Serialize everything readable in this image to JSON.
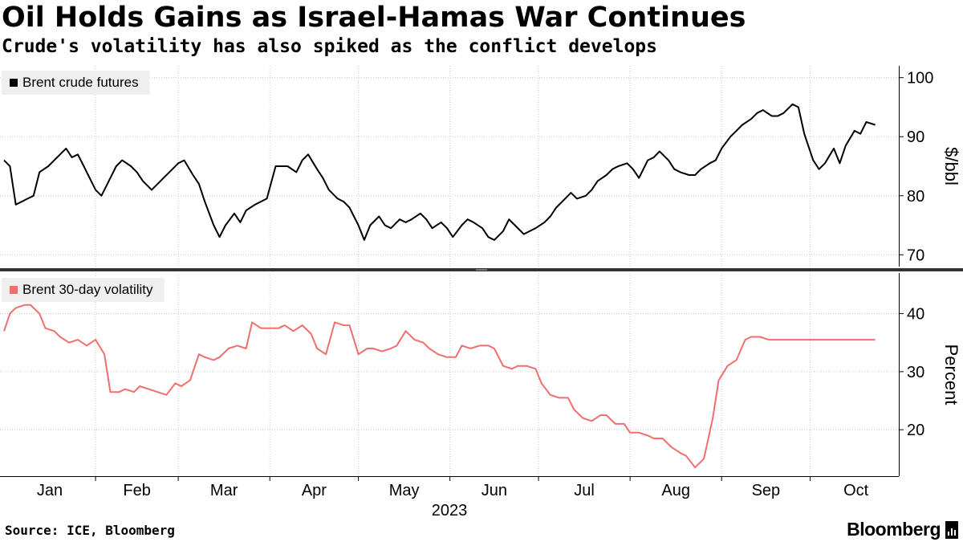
{
  "header": {
    "title": "Oil Holds Gains as Israel-Hamas War Continues",
    "subtitle": "Crude's volatility has also spiked as the conflict develops"
  },
  "footer": {
    "source": "Source: ICE, Bloomberg",
    "brand": "Bloomberg"
  },
  "colors": {
    "brent": "#000000",
    "volatility": "#f06e6e",
    "grid": "#c8c8c8",
    "divider": "#333333",
    "legend_bg": "#efefef"
  },
  "chart_data": [
    {
      "type": "line",
      "legend_position": "top-left",
      "grid": true,
      "ylabel": "$/bbl",
      "ylim": [
        68,
        102
      ],
      "yticks": [
        70,
        80,
        90,
        100
      ],
      "series": [
        {
          "name": "Brent crude futures",
          "x": [
            "2023-01-01",
            "2023-01-03",
            "2023-01-05",
            "2023-01-07",
            "2023-01-09",
            "2023-01-11",
            "2023-01-13",
            "2023-01-16",
            "2023-01-18",
            "2023-01-20",
            "2023-01-22",
            "2023-01-24",
            "2023-01-26",
            "2023-01-28",
            "2023-01-30",
            "2023-02-01",
            "2023-02-03",
            "2023-02-06",
            "2023-02-08",
            "2023-02-10",
            "2023-02-13",
            "2023-02-15",
            "2023-02-17",
            "2023-02-20",
            "2023-02-22",
            "2023-02-24",
            "2023-02-27",
            "2023-03-01",
            "2023-03-03",
            "2023-03-06",
            "2023-03-08",
            "2023-03-10",
            "2023-03-13",
            "2023-03-15",
            "2023-03-17",
            "2023-03-20",
            "2023-03-22",
            "2023-03-24",
            "2023-03-27",
            "2023-03-29",
            "2023-03-31",
            "2023-04-03",
            "2023-04-05",
            "2023-04-07",
            "2023-04-10",
            "2023-04-12",
            "2023-04-14",
            "2023-04-17",
            "2023-04-19",
            "2023-04-21",
            "2023-04-24",
            "2023-04-26",
            "2023-04-28",
            "2023-05-01",
            "2023-05-03",
            "2023-05-05",
            "2023-05-08",
            "2023-05-10",
            "2023-05-12",
            "2023-05-15",
            "2023-05-17",
            "2023-05-19",
            "2023-05-22",
            "2023-05-24",
            "2023-05-26",
            "2023-05-29",
            "2023-05-31",
            "2023-06-02",
            "2023-06-05",
            "2023-06-07",
            "2023-06-09",
            "2023-06-12",
            "2023-06-14",
            "2023-06-16",
            "2023-06-19",
            "2023-06-21",
            "2023-06-23",
            "2023-06-26",
            "2023-06-28",
            "2023-06-30",
            "2023-07-03",
            "2023-07-05",
            "2023-07-07",
            "2023-07-10",
            "2023-07-12",
            "2023-07-14",
            "2023-07-17",
            "2023-07-19",
            "2023-07-21",
            "2023-07-24",
            "2023-07-26",
            "2023-07-28",
            "2023-07-31",
            "2023-08-02",
            "2023-08-04",
            "2023-08-07",
            "2023-08-09",
            "2023-08-11",
            "2023-08-14",
            "2023-08-16",
            "2023-08-18",
            "2023-08-21",
            "2023-08-23",
            "2023-08-25",
            "2023-08-28",
            "2023-08-30",
            "2023-09-01",
            "2023-09-04",
            "2023-09-06",
            "2023-09-08",
            "2023-09-11",
            "2023-09-13",
            "2023-09-15",
            "2023-09-18",
            "2023-09-20",
            "2023-09-22",
            "2023-09-25",
            "2023-09-27",
            "2023-09-29",
            "2023-10-02",
            "2023-10-04",
            "2023-10-06",
            "2023-10-09",
            "2023-10-11",
            "2023-10-13",
            "2023-10-16",
            "2023-10-18",
            "2023-10-20",
            "2023-10-23"
          ],
          "values": [
            86,
            85,
            78.5,
            79,
            79.5,
            80,
            84,
            85,
            86,
            87,
            88,
            86.5,
            87,
            85,
            83,
            81,
            80,
            83,
            85,
            86,
            85,
            84,
            82.5,
            81,
            82,
            83,
            84.5,
            85.5,
            86,
            83.5,
            82,
            79,
            75,
            73,
            75,
            77,
            75.5,
            77.5,
            78.5,
            79,
            79.5,
            85,
            85,
            85,
            84,
            86,
            87,
            84.5,
            83,
            81,
            79.5,
            79,
            78,
            75,
            72.5,
            75,
            76.5,
            75,
            74.5,
            76,
            75.5,
            76,
            77,
            76,
            74.5,
            75.5,
            74.5,
            73,
            75,
            76,
            75.5,
            74.5,
            73,
            72.5,
            74,
            76,
            75,
            73.5,
            74,
            74.5,
            75.5,
            76.5,
            78,
            79.5,
            80.5,
            79.5,
            80,
            81,
            82.5,
            83.5,
            84.5,
            85,
            85.5,
            84.5,
            83,
            86,
            86.5,
            87.5,
            86,
            84.5,
            84,
            83.5,
            83.5,
            84.5,
            85.5,
            86,
            88,
            90,
            91,
            92,
            93,
            94,
            94.5,
            93.5,
            93.5,
            94,
            95.5,
            95,
            90.5,
            86,
            84.5,
            85.5,
            88,
            85.5,
            88.5,
            91,
            90.5,
            92.5,
            92
          ]
        }
      ]
    },
    {
      "type": "line",
      "legend_position": "top-left",
      "grid": true,
      "ylabel": "Percent",
      "ylim": [
        12,
        47
      ],
      "yticks": [
        20,
        30,
        40
      ],
      "xtick_labels": [
        "Jan",
        "Feb",
        "Mar",
        "Apr",
        "May",
        "Jun",
        "Jul",
        "Aug",
        "Sep",
        "Oct"
      ],
      "xlabel": "2023",
      "series": [
        {
          "name": "Brent 30-day volatility",
          "x": [
            "2023-01-01",
            "2023-01-03",
            "2023-01-05",
            "2023-01-08",
            "2023-01-10",
            "2023-01-13",
            "2023-01-15",
            "2023-01-18",
            "2023-01-20",
            "2023-01-23",
            "2023-01-26",
            "2023-01-29",
            "2023-02-01",
            "2023-02-04",
            "2023-02-06",
            "2023-02-09",
            "2023-02-11",
            "2023-02-14",
            "2023-02-16",
            "2023-02-19",
            "2023-02-22",
            "2023-02-25",
            "2023-02-28",
            "2023-03-02",
            "2023-03-05",
            "2023-03-08",
            "2023-03-10",
            "2023-03-13",
            "2023-03-15",
            "2023-03-18",
            "2023-03-21",
            "2023-03-24",
            "2023-03-26",
            "2023-03-29",
            "2023-04-01",
            "2023-04-04",
            "2023-04-06",
            "2023-04-09",
            "2023-04-12",
            "2023-04-15",
            "2023-04-17",
            "2023-04-20",
            "2023-04-23",
            "2023-04-26",
            "2023-04-28",
            "2023-05-01",
            "2023-05-04",
            "2023-05-06",
            "2023-05-09",
            "2023-05-12",
            "2023-05-14",
            "2023-05-17",
            "2023-05-20",
            "2023-05-23",
            "2023-05-25",
            "2023-05-28",
            "2023-05-31",
            "2023-06-03",
            "2023-06-05",
            "2023-06-08",
            "2023-06-11",
            "2023-06-14",
            "2023-06-16",
            "2023-06-19",
            "2023-06-22",
            "2023-06-24",
            "2023-06-27",
            "2023-06-30",
            "2023-07-02",
            "2023-07-05",
            "2023-07-08",
            "2023-07-11",
            "2023-07-13",
            "2023-07-16",
            "2023-07-19",
            "2023-07-22",
            "2023-07-24",
            "2023-07-27",
            "2023-07-30",
            "2023-08-01",
            "2023-08-04",
            "2023-08-07",
            "2023-08-09",
            "2023-08-12",
            "2023-08-15",
            "2023-08-18",
            "2023-08-20",
            "2023-08-23",
            "2023-08-26",
            "2023-08-29",
            "2023-08-31",
            "2023-09-03",
            "2023-09-06",
            "2023-09-09",
            "2023-09-11",
            "2023-09-14",
            "2023-09-17",
            "2023-09-20",
            "2023-09-22",
            "2023-09-25",
            "2023-09-28",
            "2023-10-01",
            "2023-10-03",
            "2023-10-06",
            "2023-10-09",
            "2023-10-12",
            "2023-10-14",
            "2023-10-17",
            "2023-10-20",
            "2023-10-23"
          ],
          "values": [
            37,
            40,
            41,
            41.5,
            41.5,
            40,
            37.5,
            37,
            36,
            35,
            35.5,
            34.5,
            35.5,
            33,
            26.5,
            26.5,
            27,
            26.5,
            27.5,
            27,
            26.5,
            26,
            28,
            27.5,
            28.5,
            33,
            32.5,
            32,
            32.5,
            34,
            34.5,
            34,
            38.5,
            37.5,
            37.5,
            37.5,
            38,
            37,
            38,
            36.5,
            34,
            33,
            38.5,
            38,
            38,
            33,
            34,
            34,
            33.5,
            34,
            34.5,
            37,
            35.5,
            35,
            34,
            33,
            32.5,
            32.5,
            34.5,
            34,
            34.5,
            34.5,
            34,
            31,
            30.5,
            31,
            31,
            30.5,
            28,
            26,
            25.5,
            25.5,
            23.5,
            22,
            21.5,
            22.5,
            22.5,
            21,
            21,
            19.5,
            19.5,
            19,
            18.5,
            18.5,
            17,
            16,
            15.5,
            13.5,
            15,
            22,
            28.5,
            31,
            32,
            35.5,
            36,
            36,
            35.5,
            35.5,
            35.5,
            35.5,
            35.5,
            35.5,
            35.5,
            35.5,
            35.5,
            35.5,
            35.5,
            35.5,
            35.5,
            35.5
          ]
        }
      ]
    }
  ]
}
